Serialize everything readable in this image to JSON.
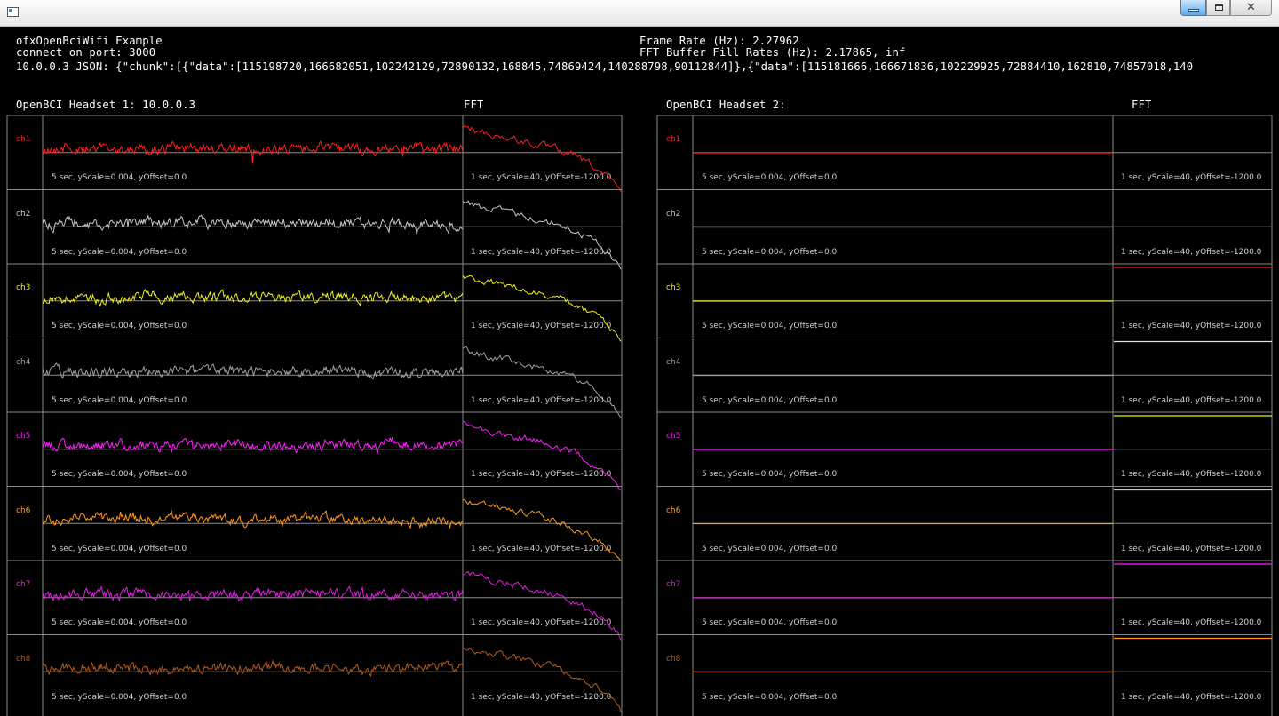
{
  "window": {
    "close_glyph": "✕"
  },
  "header": {
    "app_title": "ofxOpenBciWifi Example",
    "port_line": "connect on port: 3000",
    "frame_rate": "Frame Rate (Hz): 2.27962",
    "fft_fill": "FFT Buffer Fill Rates (Hz): 2.17865, inf",
    "json_line": "10.0.0.3 JSON: {\"chunk\":[{\"data\":[115198720,166682051,102242129,72890132,168845,74869424,140288798,90112844]},{\"data\":[115181666,166671836,102229925,72884410,162810,74857018,140"
  },
  "panels": [
    {
      "title": "OpenBCI Headset 1: 10.0.0.3",
      "fft_label": "FFT",
      "active": true
    },
    {
      "title": "OpenBCI Headset 2:",
      "fft_label": "FFT",
      "active": false
    }
  ],
  "channels": [
    {
      "label": "ch1",
      "color": "#ff2020"
    },
    {
      "label": "ch2",
      "color": "#c8c8c8"
    },
    {
      "label": "ch3",
      "color": "#f0f020"
    },
    {
      "label": "ch4",
      "color": "#a0a0a0"
    },
    {
      "label": "ch5",
      "color": "#ff20ff"
    },
    {
      "label": "ch6",
      "color": "#ff9a1e"
    },
    {
      "label": "ch7",
      "color": "#e020e0"
    },
    {
      "label": "ch8",
      "color": "#b05a20"
    }
  ],
  "time_caption": "5 sec, yScale=0.004, yOffset=0.0",
  "fft_caption": "1 sec, yScale=40, yOffset=-1200.0",
  "headset2_fft_lines": [
    {
      "channel": "ch3",
      "color": "#ff2020"
    },
    {
      "channel": "ch4",
      "color": "#e0e0e0"
    },
    {
      "channel": "ch5",
      "color": "#f0f020"
    },
    {
      "channel": "ch6",
      "color": "#c8c8c8"
    },
    {
      "channel": "ch7",
      "color": "#ff20ff"
    },
    {
      "channel": "ch8",
      "color": "#ff9a1e"
    }
  ]
}
